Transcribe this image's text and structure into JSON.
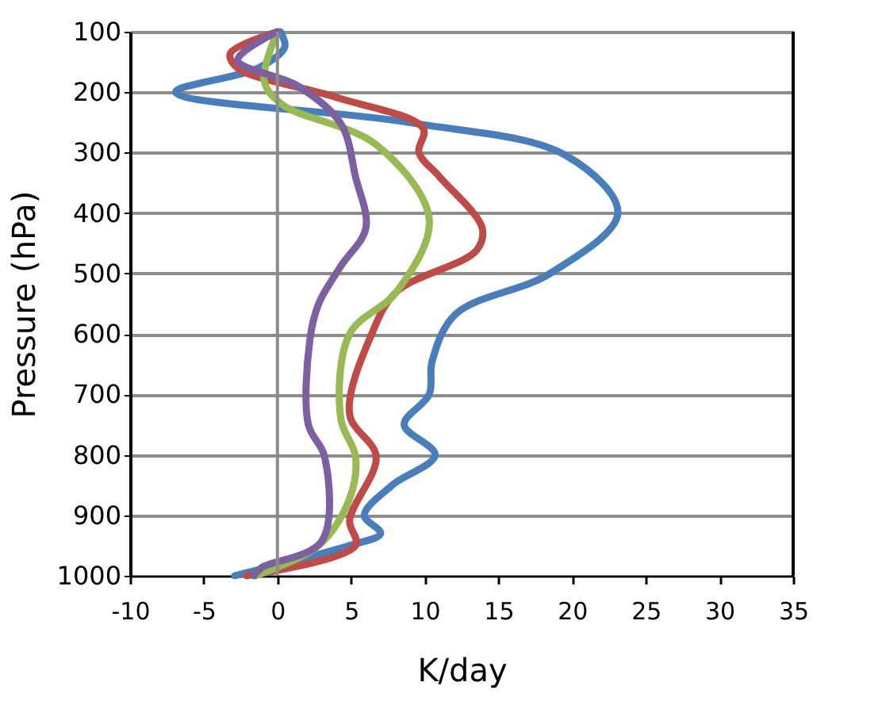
{
  "chart_data": {
    "type": "line",
    "orientation": "horizontal",
    "xlabel": "K/day",
    "ylabel": "Pressure (hPa)",
    "xlim": [
      -10,
      35
    ],
    "xticks": [
      -10,
      -5,
      0,
      5,
      10,
      15,
      20,
      25,
      30,
      35
    ],
    "ylim": [
      1000,
      100
    ],
    "yticks": [
      100,
      200,
      300,
      400,
      500,
      600,
      700,
      800,
      900,
      1000
    ],
    "grid": "y",
    "marker": "none",
    "line_style": "solid",
    "ref_lines": [
      {
        "axis": "x",
        "value": 0,
        "color": "#8c8c8c"
      }
    ],
    "series": [
      {
        "color": "#4a7ebb",
        "x": [
          100,
          125,
          160,
          200,
          250,
          305,
          400,
          500,
          567,
          645,
          700,
          750,
          800,
          850,
          900,
          930,
          950,
          1000
        ],
        "values": [
          0.2,
          0.5,
          -1.3,
          -6.9,
          8.9,
          19.6,
          23.1,
          18.5,
          12.1,
          10.5,
          10.3,
          8.6,
          10.7,
          7.8,
          5.9,
          7.0,
          4.9,
          -2.9
        ]
      },
      {
        "color": "#be4b48",
        "x": [
          100,
          136,
          160,
          208,
          260,
          300,
          340,
          425,
          462,
          530,
          600,
          733,
          803,
          908,
          950,
          1000
        ],
        "values": [
          0,
          -3.2,
          -2.7,
          3.9,
          9.9,
          9.6,
          11.0,
          13.9,
          13.5,
          8.1,
          6.4,
          4.9,
          6.7,
          4.9,
          5.3,
          -2.1
        ]
      },
      {
        "color": "#98b954",
        "x": [
          100,
          181,
          220,
          287,
          410,
          530,
          600,
          740,
          803,
          872,
          950,
          1000
        ],
        "values": [
          0,
          -0.9,
          0.3,
          6.7,
          10.3,
          8.1,
          4.9,
          4.3,
          5.3,
          4.9,
          2.8,
          -1.5
        ]
      },
      {
        "color": "#7d60a0",
        "x": [
          100,
          147,
          190,
          252,
          340,
          425,
          488,
          550,
          610,
          750,
          803,
          943,
          987,
          1000
        ],
        "values": [
          0,
          -2.7,
          1.4,
          4.3,
          5.3,
          6.0,
          4.3,
          2.8,
          2.2,
          2.1,
          3.2,
          3.0,
          -1.1,
          -1.6
        ]
      }
    ]
  }
}
